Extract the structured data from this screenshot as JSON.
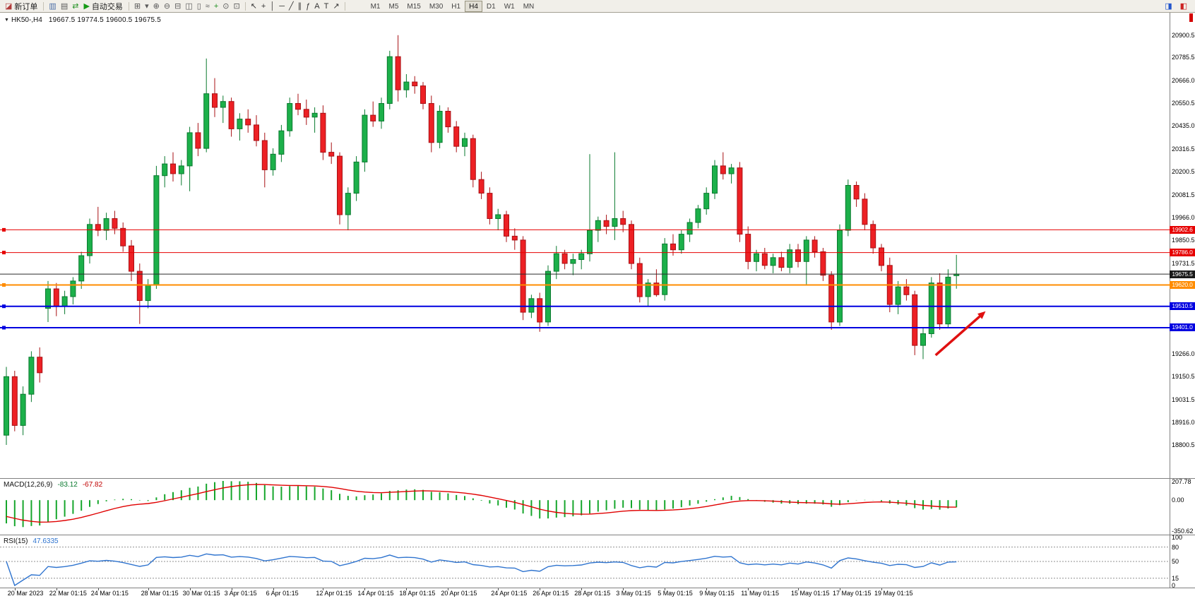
{
  "toolbar": {
    "new_order_icon": "◪",
    "new_order_label": "新订单",
    "auto_trading_icon": "▶",
    "auto_trading_label": "自动交易",
    "group_windows": [
      {
        "name": "market-watch-icon",
        "g": "▥",
        "c": "#4a6da7"
      },
      {
        "name": "data-window-icon",
        "g": "▤",
        "c": "#5a5a5a"
      },
      {
        "name": "navigator-icon",
        "g": "⇄",
        "c": "#1f8f1f"
      }
    ],
    "group_chart_tools": [
      {
        "name": "new-chart-icon",
        "g": "⊞",
        "c": "#5a5a5a"
      },
      {
        "name": "profiles-icon",
        "g": "▾",
        "c": "#5a5a5a"
      },
      {
        "name": "zoom-in-icon",
        "g": "⊕",
        "c": "#5a5a5a"
      },
      {
        "name": "zoom-out-icon",
        "g": "⊖",
        "c": "#5a5a5a"
      },
      {
        "name": "tile-windows-icon",
        "g": "⊟",
        "c": "#5a5a5a"
      },
      {
        "name": "bar-chart-icon",
        "g": "◫",
        "c": "#5a5a5a"
      },
      {
        "name": "candlestick-chart-icon",
        "g": "▯",
        "c": "#5a5a5a"
      },
      {
        "name": "line-chart-icon",
        "g": "≈",
        "c": "#5a5a5a"
      },
      {
        "name": "indicators-icon",
        "g": "+",
        "c": "#1f8f1f"
      },
      {
        "name": "periods-icon",
        "g": "⊙",
        "c": "#5a5a5a"
      },
      {
        "name": "templates-icon",
        "g": "⊡",
        "c": "#5a5a5a"
      }
    ],
    "group_line_tools": [
      {
        "name": "cursor-icon",
        "g": "↖",
        "c": "#333333"
      },
      {
        "name": "crosshair-icon",
        "g": "+",
        "c": "#333333"
      },
      {
        "name": "vline-icon",
        "g": "│",
        "c": "#333333"
      },
      {
        "name": "hline-icon",
        "g": "─",
        "c": "#333333"
      },
      {
        "name": "trendline-icon",
        "g": "╱",
        "c": "#333333"
      },
      {
        "name": "channel-icon",
        "g": "∥",
        "c": "#333333"
      },
      {
        "name": "fibonacci-icon",
        "g": "ƒ",
        "c": "#333333"
      },
      {
        "name": "text-icon",
        "g": "A",
        "c": "#333333"
      },
      {
        "name": "label-icon",
        "g": "T",
        "c": "#333333"
      },
      {
        "name": "arrows-icon",
        "g": "↗",
        "c": "#333333"
      }
    ],
    "timeframes": [
      "M1",
      "M5",
      "M15",
      "M30",
      "H1",
      "H4",
      "D1",
      "W1",
      "MN"
    ],
    "active_timeframe": "H4",
    "right_icons": [
      {
        "name": "toolbar-right-icon-1",
        "g": "◨",
        "c": "#2255cc"
      },
      {
        "name": "toolbar-right-icon-2",
        "g": "◧",
        "c": "#cc2222"
      }
    ]
  },
  "chart": {
    "dropdown_icon": "▼",
    "title": "HK50-,H4",
    "ohlc_text": "19667.5 19774.5 19600.5 19675.5"
  },
  "chart_data": {
    "type": "candlestick",
    "symbol": "HK50-",
    "timeframe": "H4",
    "current_ohlc": {
      "open": 19667.5,
      "high": 19774.5,
      "low": 19600.5,
      "close": 19675.5
    },
    "ylim": [
      18630,
      21015
    ],
    "colors": {
      "up": "#1cb04a",
      "up_border": "#0a7a2f",
      "down": "#ed2024",
      "down_border": "#a81014",
      "macd_bar": "#16a62c",
      "macd_signal": "#e00000",
      "rsi_line": "#2f74cf"
    },
    "price_axis_labels": [
      {
        "v": 20900.5,
        "t": "20900.5"
      },
      {
        "v": 20785.5,
        "t": "20785.5"
      },
      {
        "v": 20666.0,
        "t": "20666.0"
      },
      {
        "v": 20550.5,
        "t": "20550.5"
      },
      {
        "v": 20435.0,
        "t": "20435.0"
      },
      {
        "v": 20316.5,
        "t": "20316.5"
      },
      {
        "v": 20200.5,
        "t": "20200.5"
      },
      {
        "v": 20081.5,
        "t": "20081.5"
      },
      {
        "v": 19966.0,
        "t": "19966.0"
      },
      {
        "v": 19850.5,
        "t": "19850.5"
      },
      {
        "v": 19731.5,
        "t": "19731.5"
      },
      {
        "v": 19266.0,
        "t": "19266.0"
      },
      {
        "v": 19150.5,
        "t": "19150.5"
      },
      {
        "v": 19031.5,
        "t": "19031.5"
      },
      {
        "v": 18916.0,
        "t": "18916.0"
      },
      {
        "v": 18800.5,
        "t": "18800.5"
      }
    ],
    "hlines": [
      {
        "v": 19902.6,
        "t": "19902.6",
        "color": "#e60000",
        "w": 1,
        "object": true,
        "tag_bg": "#e60000",
        "name": "resistance-hline-1"
      },
      {
        "v": 19786.0,
        "t": "19786.0",
        "color": "#e60000",
        "w": 1,
        "object": true,
        "tag_bg": "#e60000",
        "name": "resistance-hline-2"
      },
      {
        "v": 19675.5,
        "t": "19675.5",
        "color": "#2a2a2a",
        "w": 1,
        "object": false,
        "tag_bg": "#1a1a1a",
        "name": "current-price-line"
      },
      {
        "v": 19620.0,
        "t": "19620.0",
        "color": "#ff8c00",
        "w": 2,
        "object": true,
        "tag_bg": "#ff8c00",
        "name": "pivot-hline-orange"
      },
      {
        "v": 19510.5,
        "t": "19510.5",
        "color": "#0000e0",
        "w": 2,
        "object": true,
        "tag_bg": "#0000e0",
        "name": "support-hline-1"
      },
      {
        "v": 19401.0,
        "t": "19401.0",
        "color": "#0000e0",
        "w": 2,
        "object": true,
        "tag_bg": "#0000e0",
        "name": "support-hline-2"
      }
    ],
    "candles": [
      [
        18850,
        19200,
        18800,
        19150
      ],
      [
        19150,
        19180,
        18870,
        18900
      ],
      [
        18900,
        19100,
        18850,
        19060
      ],
      [
        19060,
        19280,
        19020,
        19250
      ],
      [
        19250,
        19300,
        19120,
        19170
      ],
      [
        19500,
        19640,
        19430,
        19600
      ],
      [
        19600,
        19630,
        19460,
        19510
      ],
      [
        19510,
        19590,
        19470,
        19560
      ],
      [
        19560,
        19660,
        19520,
        19640
      ],
      [
        19640,
        19790,
        19600,
        19770
      ],
      [
        19770,
        19960,
        19730,
        19930
      ],
      [
        19930,
        20020,
        19870,
        19900
      ],
      [
        19900,
        19990,
        19850,
        19960
      ],
      [
        19960,
        20000,
        19880,
        19910
      ],
      [
        19910,
        19940,
        19790,
        19820
      ],
      [
        19820,
        19850,
        19640,
        19690
      ],
      [
        19690,
        19730,
        19420,
        19540
      ],
      [
        19540,
        19650,
        19500,
        19620
      ],
      [
        19620,
        20230,
        19600,
        20180
      ],
      [
        20180,
        20280,
        20120,
        20240
      ],
      [
        20240,
        20300,
        20150,
        20190
      ],
      [
        20190,
        20260,
        20130,
        20230
      ],
      [
        20230,
        20430,
        20100,
        20400
      ],
      [
        20400,
        20450,
        20280,
        20320
      ],
      [
        20320,
        20780,
        20300,
        20600
      ],
      [
        20600,
        20680,
        20480,
        20530
      ],
      [
        20530,
        20590,
        20450,
        20560
      ],
      [
        20560,
        20580,
        20380,
        20420
      ],
      [
        20420,
        20500,
        20360,
        20470
      ],
      [
        20470,
        20520,
        20400,
        20440
      ],
      [
        20440,
        20490,
        20330,
        20360
      ],
      [
        20360,
        20400,
        20120,
        20210
      ],
      [
        20210,
        20320,
        20180,
        20290
      ],
      [
        20290,
        20440,
        20250,
        20410
      ],
      [
        20410,
        20580,
        20380,
        20550
      ],
      [
        20550,
        20600,
        20490,
        20520
      ],
      [
        20520,
        20570,
        20440,
        20480
      ],
      [
        20480,
        20530,
        20400,
        20500
      ],
      [
        20500,
        20540,
        20260,
        20300
      ],
      [
        20300,
        20350,
        20240,
        20280
      ],
      [
        20280,
        20300,
        19930,
        19980
      ],
      [
        19980,
        20120,
        19900,
        20090
      ],
      [
        20090,
        20280,
        20050,
        20250
      ],
      [
        20250,
        20520,
        20200,
        20490
      ],
      [
        20490,
        20560,
        20430,
        20460
      ],
      [
        20460,
        20580,
        20420,
        20550
      ],
      [
        20550,
        20820,
        20520,
        20790
      ],
      [
        20790,
        20900,
        20560,
        20620
      ],
      [
        20620,
        20700,
        20580,
        20660
      ],
      [
        20660,
        20690,
        20600,
        20640
      ],
      [
        20640,
        20660,
        20520,
        20550
      ],
      [
        20550,
        20590,
        20300,
        20350
      ],
      [
        20350,
        20540,
        20320,
        20510
      ],
      [
        20510,
        20530,
        20400,
        20430
      ],
      [
        20430,
        20460,
        20300,
        20330
      ],
      [
        20330,
        20400,
        20280,
        20370
      ],
      [
        20370,
        20390,
        20120,
        20160
      ],
      [
        20160,
        20200,
        20060,
        20090
      ],
      [
        20090,
        20120,
        19930,
        19960
      ],
      [
        19960,
        20010,
        19900,
        19980
      ],
      [
        19980,
        20000,
        19840,
        19870
      ],
      [
        19870,
        19910,
        19800,
        19850
      ],
      [
        19850,
        19870,
        19440,
        19480
      ],
      [
        19480,
        19570,
        19450,
        19550
      ],
      [
        19550,
        19580,
        19380,
        19430
      ],
      [
        19430,
        19720,
        19410,
        19690
      ],
      [
        19690,
        19820,
        19650,
        19780
      ],
      [
        19780,
        19800,
        19700,
        19730
      ],
      [
        19730,
        19780,
        19670,
        19750
      ],
      [
        19750,
        19800,
        19700,
        19780
      ],
      [
        19780,
        20290,
        19740,
        19900
      ],
      [
        19900,
        19970,
        19840,
        19950
      ],
      [
        19950,
        19980,
        19880,
        19920
      ],
      [
        19920,
        20300,
        19850,
        19960
      ],
      [
        19960,
        20000,
        19890,
        19930
      ],
      [
        19930,
        19950,
        19700,
        19730
      ],
      [
        19730,
        19760,
        19530,
        19560
      ],
      [
        19560,
        19650,
        19510,
        19630
      ],
      [
        19630,
        19700,
        19560,
        19570
      ],
      [
        19570,
        19860,
        19540,
        19830
      ],
      [
        19830,
        19880,
        19770,
        19800
      ],
      [
        19800,
        19900,
        19780,
        19880
      ],
      [
        19880,
        19960,
        19840,
        19940
      ],
      [
        19940,
        20030,
        19910,
        20010
      ],
      [
        20010,
        20120,
        19980,
        20090
      ],
      [
        20090,
        20260,
        20060,
        20230
      ],
      [
        20230,
        20300,
        20160,
        20190
      ],
      [
        20190,
        20240,
        20140,
        20220
      ],
      [
        20220,
        20250,
        19840,
        19880
      ],
      [
        19880,
        19920,
        19700,
        19740
      ],
      [
        19740,
        19800,
        19690,
        19780
      ],
      [
        19780,
        19810,
        19700,
        19720
      ],
      [
        19720,
        19780,
        19680,
        19760
      ],
      [
        19760,
        19790,
        19690,
        19710
      ],
      [
        19710,
        19830,
        19680,
        19800
      ],
      [
        19800,
        19830,
        19710,
        19740
      ],
      [
        19740,
        19870,
        19620,
        19850
      ],
      [
        19850,
        19870,
        19760,
        19790
      ],
      [
        19790,
        19810,
        19640,
        19670
      ],
      [
        19670,
        19690,
        19390,
        19430
      ],
      [
        19430,
        19930,
        19410,
        19900
      ],
      [
        19900,
        20160,
        19870,
        20130
      ],
      [
        20130,
        20150,
        20020,
        20060
      ],
      [
        20060,
        20090,
        19900,
        19930
      ],
      [
        19930,
        19950,
        19780,
        19810
      ],
      [
        19810,
        19830,
        19690,
        19720
      ],
      [
        19720,
        19760,
        19480,
        19520
      ],
      [
        19520,
        19640,
        19470,
        19610
      ],
      [
        19610,
        19650,
        19540,
        19570
      ],
      [
        19570,
        19590,
        19260,
        19310
      ],
      [
        19310,
        19400,
        19240,
        19370
      ],
      [
        19370,
        19660,
        19350,
        19630
      ],
      [
        19630,
        19680,
        19390,
        19420
      ],
      [
        19420,
        19700,
        19400,
        19660
      ],
      [
        19667.5,
        19774.5,
        19600.5,
        19675.5
      ]
    ],
    "time_labels": [
      {
        "i": 1,
        "t": "20 Mar 2023"
      },
      {
        "i": 6,
        "t": "22 Mar 01:15"
      },
      {
        "i": 11,
        "t": "24 Mar 01:15"
      },
      {
        "i": 17,
        "t": "28 Mar 01:15"
      },
      {
        "i": 22,
        "t": "30 Mar 01:15"
      },
      {
        "i": 27,
        "t": "3 Apr 01:15"
      },
      {
        "i": 32,
        "t": "6 Apr 01:15"
      },
      {
        "i": 38,
        "t": "12 Apr 01:15"
      },
      {
        "i": 43,
        "t": "14 Apr 01:15"
      },
      {
        "i": 48,
        "t": "18 Apr 01:15"
      },
      {
        "i": 53,
        "t": "20 Apr 01:15"
      },
      {
        "i": 59,
        "t": "24 Apr 01:15"
      },
      {
        "i": 64,
        "t": "26 Apr 01:15"
      },
      {
        "i": 69,
        "t": "28 Apr 01:15"
      },
      {
        "i": 74,
        "t": "3 May 01:15"
      },
      {
        "i": 79,
        "t": "5 May 01:15"
      },
      {
        "i": 84,
        "t": "9 May 01:15"
      },
      {
        "i": 89,
        "t": "11 May 01:15"
      },
      {
        "i": 95,
        "t": "15 May 01:15"
      },
      {
        "i": 100,
        "t": "17 May 01:15"
      },
      {
        "i": 105,
        "t": "19 May 01:15"
      }
    ],
    "macd": {
      "label": "MACD(12,26,9)",
      "value1": "-83.12",
      "value2": "-67.82",
      "fast": 12,
      "slow": 26,
      "signal_period": 9,
      "axis_labels": [
        {
          "v": 207.78,
          "t": "207.78"
        },
        {
          "v": 0,
          "t": "0.00"
        },
        {
          "v": -350.62,
          "t": "-350.62"
        }
      ]
    },
    "rsi": {
      "label": "RSI(15)",
      "value": "47.6335",
      "period": 15,
      "levels": [
        80,
        50,
        15
      ],
      "axis_labels": [
        {
          "v": 100,
          "t": "100"
        },
        {
          "v": 80,
          "t": "80"
        },
        {
          "v": 50,
          "t": "50"
        },
        {
          "v": 15,
          "t": "15"
        },
        {
          "v": 0,
          "t": "0"
        }
      ]
    },
    "annotation": {
      "type": "arrow",
      "color": "#e01010",
      "tail": {
        "index": 111.5,
        "price": 19260
      },
      "head": {
        "index": 117.5,
        "price": 19485
      }
    }
  }
}
